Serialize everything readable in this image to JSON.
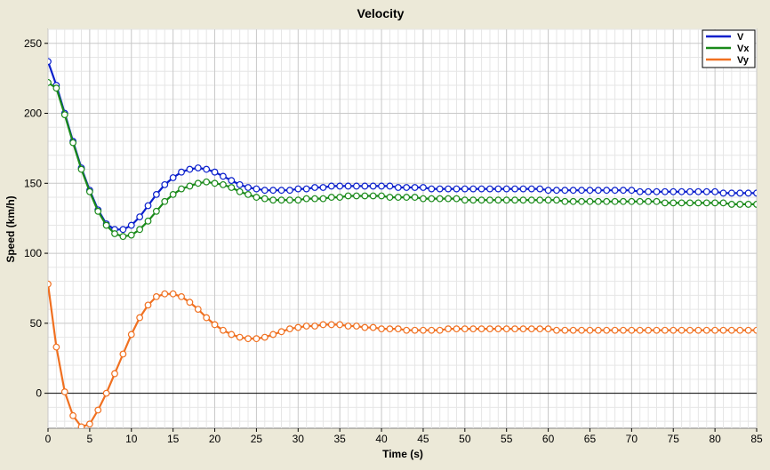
{
  "chart_data": {
    "type": "line",
    "title": "Velocity",
    "xlabel": "Time (s)",
    "ylabel": "Speed (km/h)",
    "xlim": [
      0,
      85
    ],
    "ylim": [
      -25,
      260
    ],
    "x_ticks": [
      0,
      5,
      10,
      15,
      20,
      25,
      30,
      35,
      40,
      45,
      50,
      55,
      60,
      65,
      70,
      75,
      80,
      85
    ],
    "y_ticks": [
      0,
      50,
      100,
      150,
      200,
      250
    ],
    "grid": true,
    "legend_position": "top-right",
    "colors": {
      "background": "#ece9d8",
      "plot_background": "#ffffff",
      "grid_major": "#c8c8c8",
      "grid_minor": "#e6e6e6",
      "zero_line": "#000000"
    },
    "series": [
      {
        "name": "V",
        "color": "#0a1fcc",
        "x": [
          0,
          1,
          2,
          3,
          4,
          5,
          6,
          7,
          8,
          9,
          10,
          11,
          12,
          13,
          14,
          15,
          16,
          17,
          18,
          19,
          20,
          21,
          22,
          23,
          24,
          25,
          26,
          27,
          28,
          29,
          30,
          31,
          32,
          33,
          34,
          35,
          36,
          37,
          38,
          39,
          40,
          41,
          42,
          43,
          44,
          45,
          46,
          47,
          48,
          49,
          50,
          51,
          52,
          53,
          54,
          55,
          56,
          57,
          58,
          59,
          60,
          61,
          62,
          63,
          64,
          65,
          66,
          67,
          68,
          69,
          70,
          71,
          72,
          73,
          74,
          75,
          76,
          77,
          78,
          79,
          80,
          81,
          82,
          83,
          84,
          85
        ],
        "values": [
          237,
          220,
          200,
          180,
          161,
          145,
          131,
          121,
          117,
          117,
          120,
          126,
          134,
          142,
          149,
          154,
          158,
          160,
          161,
          160,
          158,
          155,
          152,
          149,
          147,
          146,
          145,
          145,
          145,
          145,
          146,
          146,
          147,
          147,
          148,
          148,
          148,
          148,
          148,
          148,
          148,
          148,
          147,
          147,
          147,
          147,
          146,
          146,
          146,
          146,
          146,
          146,
          146,
          146,
          146,
          146,
          146,
          146,
          146,
          146,
          145,
          145,
          145,
          145,
          145,
          145,
          145,
          145,
          145,
          145,
          145,
          144,
          144,
          144,
          144,
          144,
          144,
          144,
          144,
          144,
          144,
          143,
          143,
          143,
          143,
          143
        ]
      },
      {
        "name": "Vx",
        "color": "#1a8a1a",
        "x": [
          0,
          1,
          2,
          3,
          4,
          5,
          6,
          7,
          8,
          9,
          10,
          11,
          12,
          13,
          14,
          15,
          16,
          17,
          18,
          19,
          20,
          21,
          22,
          23,
          24,
          25,
          26,
          27,
          28,
          29,
          30,
          31,
          32,
          33,
          34,
          35,
          36,
          37,
          38,
          39,
          40,
          41,
          42,
          43,
          44,
          45,
          46,
          47,
          48,
          49,
          50,
          51,
          52,
          53,
          54,
          55,
          56,
          57,
          58,
          59,
          60,
          61,
          62,
          63,
          64,
          65,
          66,
          67,
          68,
          69,
          70,
          71,
          72,
          73,
          74,
          75,
          76,
          77,
          78,
          79,
          80,
          81,
          82,
          83,
          84,
          85
        ],
        "values": [
          222,
          218,
          199,
          179,
          160,
          144,
          130,
          120,
          114,
          112,
          113,
          117,
          123,
          130,
          137,
          142,
          146,
          148,
          150,
          151,
          150,
          149,
          147,
          144,
          142,
          140,
          139,
          138,
          138,
          138,
          138,
          139,
          139,
          139,
          140,
          140,
          141,
          141,
          141,
          141,
          141,
          140,
          140,
          140,
          140,
          139,
          139,
          139,
          139,
          139,
          138,
          138,
          138,
          138,
          138,
          138,
          138,
          138,
          138,
          138,
          138,
          138,
          137,
          137,
          137,
          137,
          137,
          137,
          137,
          137,
          137,
          137,
          137,
          137,
          136,
          136,
          136,
          136,
          136,
          136,
          136,
          136,
          135,
          135,
          135,
          135
        ]
      },
      {
        "name": "Vy",
        "color": "#f07020",
        "x": [
          0,
          1,
          2,
          3,
          4,
          5,
          6,
          7,
          8,
          9,
          10,
          11,
          12,
          13,
          14,
          15,
          16,
          17,
          18,
          19,
          20,
          21,
          22,
          23,
          24,
          25,
          26,
          27,
          28,
          29,
          30,
          31,
          32,
          33,
          34,
          35,
          36,
          37,
          38,
          39,
          40,
          41,
          42,
          43,
          44,
          45,
          46,
          47,
          48,
          49,
          50,
          51,
          52,
          53,
          54,
          55,
          56,
          57,
          58,
          59,
          60,
          61,
          62,
          63,
          64,
          65,
          66,
          67,
          68,
          69,
          70,
          71,
          72,
          73,
          74,
          75,
          76,
          77,
          78,
          79,
          80,
          81,
          82,
          83,
          84,
          85
        ],
        "values": [
          78,
          33,
          1,
          -16,
          -24,
          -22,
          -12,
          0,
          14,
          28,
          42,
          54,
          63,
          69,
          71,
          71,
          69,
          65,
          60,
          54,
          49,
          45,
          42,
          40,
          39,
          39,
          40,
          42,
          44,
          46,
          47,
          48,
          48,
          49,
          49,
          49,
          48,
          48,
          47,
          47,
          46,
          46,
          46,
          45,
          45,
          45,
          45,
          45,
          46,
          46,
          46,
          46,
          46,
          46,
          46,
          46,
          46,
          46,
          46,
          46,
          46,
          45,
          45,
          45,
          45,
          45,
          45,
          45,
          45,
          45,
          45,
          45,
          45,
          45,
          45,
          45,
          45,
          45,
          45,
          45,
          45,
          45,
          45,
          45,
          45,
          45
        ]
      }
    ]
  }
}
